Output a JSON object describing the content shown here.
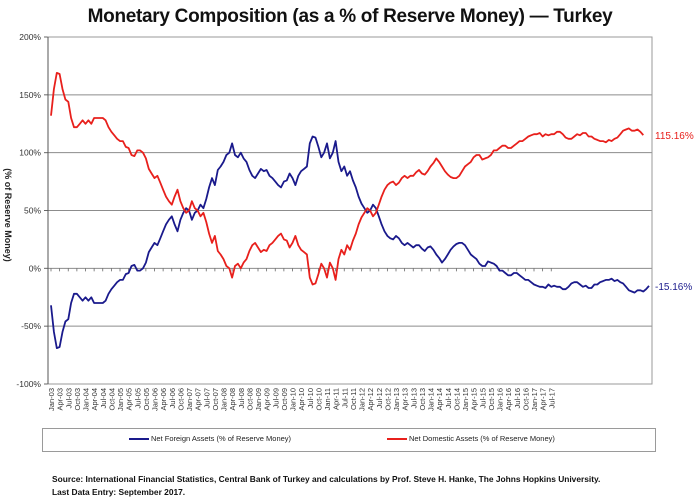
{
  "chart_data": {
    "type": "line",
    "title": "Monetary Composition (as a % of Reserve Money) — Turkey",
    "xlabel": "",
    "ylabel": "(% of Reserve Money)",
    "ylim": [
      -100,
      200
    ],
    "yticks": [
      -100,
      -50,
      0,
      50,
      100,
      150,
      200
    ],
    "ytick_labels": [
      "-100%",
      "-50%",
      "0%",
      "50%",
      "100%",
      "150%",
      "200%"
    ],
    "grid": true,
    "legend_placement": "bottom",
    "x_start": "Jan-03",
    "x_end": "Sep-17",
    "x_frequency": "monthly",
    "xtick_labels": [
      "Jan-03",
      "Apr-03",
      "Jul-03",
      "Oct-03",
      "Jan-04",
      "Apr-04",
      "Jul-04",
      "Oct-04",
      "Jan-05",
      "Apr-05",
      "Jul-05",
      "Oct-05",
      "Jan-06",
      "Apr-06",
      "Jul-06",
      "Oct-06",
      "Jan-07",
      "Apr-07",
      "Jul-07",
      "Oct-07",
      "Jan-08",
      "Apr-08",
      "Jul-08",
      "Oct-08",
      "Jan-09",
      "Apr-09",
      "Jul-09",
      "Oct-09",
      "Jan-10",
      "Apr-10",
      "Jul-10",
      "Oct-10",
      "Jan-11",
      "Apr-11",
      "Jul-11",
      "Oct-11",
      "Jan-12",
      "Apr-12",
      "Jul-12",
      "Oct-12",
      "Jan-13",
      "Apr-13",
      "Jul-13",
      "Oct-13",
      "Jan-14",
      "Apr-14",
      "Jul-14",
      "Oct-14",
      "Jan-15",
      "Apr-15",
      "Jul-15",
      "Oct-15",
      "Jan-16",
      "Apr-16",
      "Jul-16",
      "Oct-16",
      "Jan-17",
      "Apr-17",
      "Jul-17"
    ],
    "series": [
      {
        "name": "Net Foreign Assets (% of Reserve Money)",
        "color": "#1a1a8c",
        "end_label": "-15.16%",
        "values": [
          -32,
          -55,
          -69,
          -68,
          -55,
          -46,
          -44,
          -30,
          -22,
          -22,
          -25,
          -28,
          -25,
          -28,
          -25,
          -30,
          -30,
          -30,
          -30,
          -28,
          -22,
          -18,
          -15,
          -12,
          -10,
          -10,
          -5,
          -4,
          2,
          3,
          -2,
          -2,
          0,
          5,
          14,
          18,
          22,
          20,
          26,
          32,
          38,
          42,
          45,
          38,
          32,
          42,
          48,
          52,
          50,
          42,
          48,
          50,
          55,
          52,
          60,
          70,
          78,
          72,
          85,
          88,
          92,
          98,
          100,
          108,
          98,
          96,
          100,
          95,
          92,
          85,
          80,
          78,
          82,
          86,
          84,
          85,
          80,
          78,
          75,
          72,
          70,
          75,
          76,
          82,
          78,
          72,
          80,
          84,
          86,
          88,
          108,
          114,
          113,
          105,
          96,
          100,
          108,
          95,
          100,
          110,
          92,
          84,
          88,
          80,
          84,
          76,
          70,
          62,
          56,
          52,
          48,
          50,
          55,
          52,
          45,
          38,
          32,
          28,
          26,
          25,
          28,
          26,
          22,
          20,
          22,
          20,
          18,
          20,
          20,
          17,
          15,
          18,
          19,
          16,
          12,
          9,
          5,
          8,
          12,
          16,
          19,
          21,
          22,
          22,
          20,
          16,
          12,
          10,
          8,
          4,
          2,
          2,
          6,
          5,
          4,
          2,
          -2,
          -2,
          -4,
          -6,
          -6,
          -4,
          -4,
          -6,
          -8,
          -10,
          -10,
          -12,
          -14,
          -15,
          -16,
          -16,
          -17,
          -14,
          -16,
          -15,
          -16,
          -16,
          -18,
          -18,
          -16,
          -13,
          -12,
          -12,
          -14,
          -16,
          -15,
          -17,
          -17,
          -14,
          -14,
          -12,
          -11,
          -10,
          -10,
          -9,
          -11,
          -10,
          -12,
          -13,
          -16,
          -19,
          -20,
          -21,
          -19,
          -19,
          -20,
          -18,
          -15.16
        ]
      },
      {
        "name": "Net Domestic Assets (% of Reserve Money)",
        "color": "#e8201c",
        "end_label": "115.16%",
        "values": [
          132,
          155,
          169,
          168,
          155,
          146,
          144,
          130,
          122,
          122,
          125,
          128,
          125,
          128,
          125,
          130,
          130,
          130,
          130,
          128,
          122,
          118,
          115,
          112,
          110,
          110,
          105,
          104,
          98,
          97,
          102,
          102,
          100,
          95,
          86,
          82,
          78,
          80,
          74,
          68,
          62,
          58,
          55,
          62,
          68,
          58,
          52,
          48,
          50,
          58,
          52,
          50,
          45,
          48,
          40,
          30,
          22,
          28,
          15,
          12,
          8,
          2,
          0,
          -8,
          2,
          4,
          0,
          5,
          8,
          15,
          20,
          22,
          18,
          14,
          16,
          15,
          20,
          22,
          25,
          28,
          30,
          25,
          24,
          18,
          22,
          28,
          20,
          16,
          14,
          12,
          -8,
          -14,
          -13,
          -5,
          4,
          0,
          -8,
          5,
          0,
          -10,
          8,
          16,
          12,
          20,
          16,
          24,
          30,
          38,
          44,
          48,
          52,
          50,
          45,
          48,
          55,
          62,
          68,
          72,
          74,
          75,
          72,
          74,
          78,
          80,
          78,
          80,
          80,
          83,
          85,
          82,
          81,
          84,
          88,
          91,
          95,
          92,
          88,
          84,
          81,
          79,
          78,
          78,
          80,
          84,
          88,
          90,
          92,
          96,
          98,
          98,
          94,
          95,
          96,
          98,
          102,
          102,
          104,
          106,
          106,
          104,
          104,
          106,
          108,
          110,
          110,
          112,
          114,
          115,
          116,
          116,
          117,
          114,
          116,
          115,
          116,
          116,
          118,
          118,
          116,
          113,
          112,
          112,
          114,
          116,
          115,
          117,
          117,
          114,
          114,
          112,
          111,
          110,
          110,
          109,
          111,
          110,
          112,
          113,
          116,
          119,
          120,
          121,
          119,
          119,
          120,
          118,
          115.16
        ]
      }
    ]
  },
  "footer": {
    "source": "Source: International Financial Statistics, Central Bank of Turkey and calculations by Prof. Steve H. Hanke, The Johns Hopkins University.",
    "last_entry": "Last Data Entry: September 2017."
  }
}
